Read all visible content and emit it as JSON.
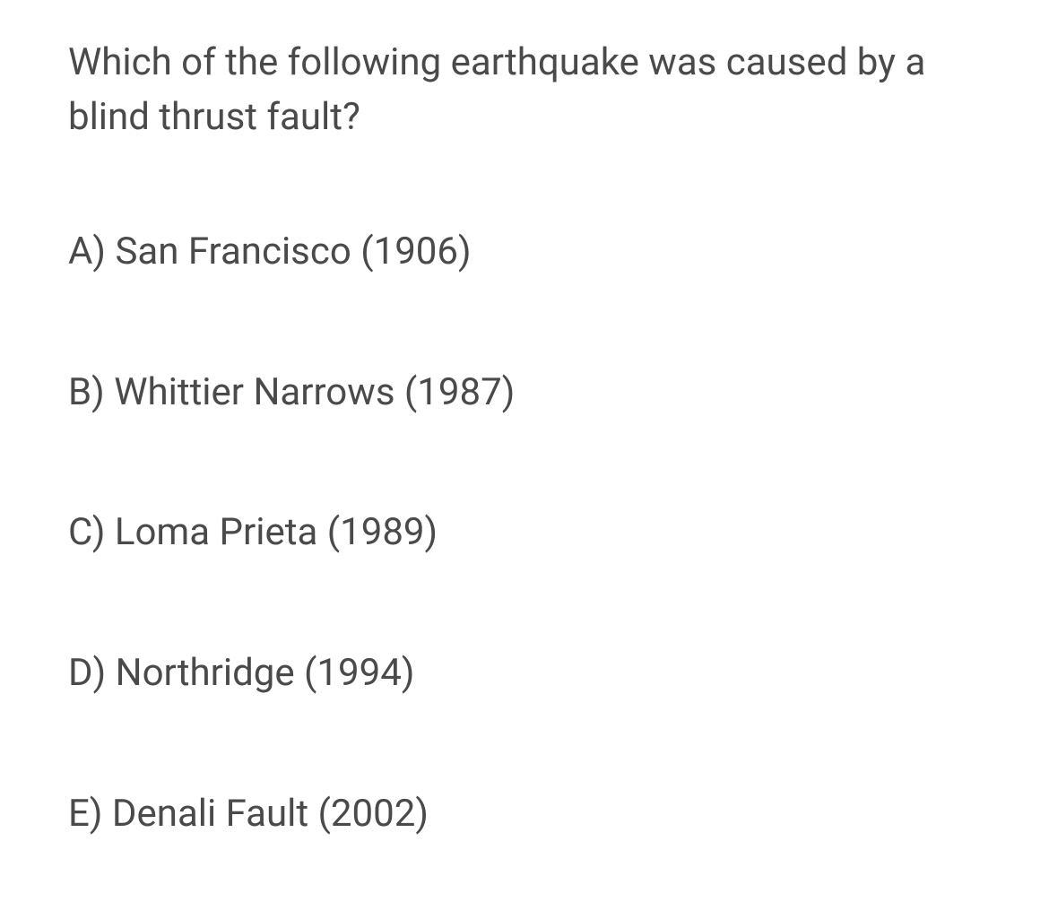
{
  "question": "Which of the following earthquake was caused by a blind thrust fault?",
  "options": [
    {
      "letter": "A",
      "text": "San Francisco (1906)"
    },
    {
      "letter": "B",
      "text": "Whittier Narrows (1987)"
    },
    {
      "letter": "C",
      "text": "Loma Prieta (1989)"
    },
    {
      "letter": "D",
      "text": "Northridge (1994)"
    },
    {
      "letter": "E",
      "text": "Denali Fault (2002)"
    }
  ],
  "colors": {
    "text": "#4a4a4a",
    "background": "#ffffff"
  },
  "typography": {
    "font_size_pt": 42,
    "font_weight": 400
  }
}
